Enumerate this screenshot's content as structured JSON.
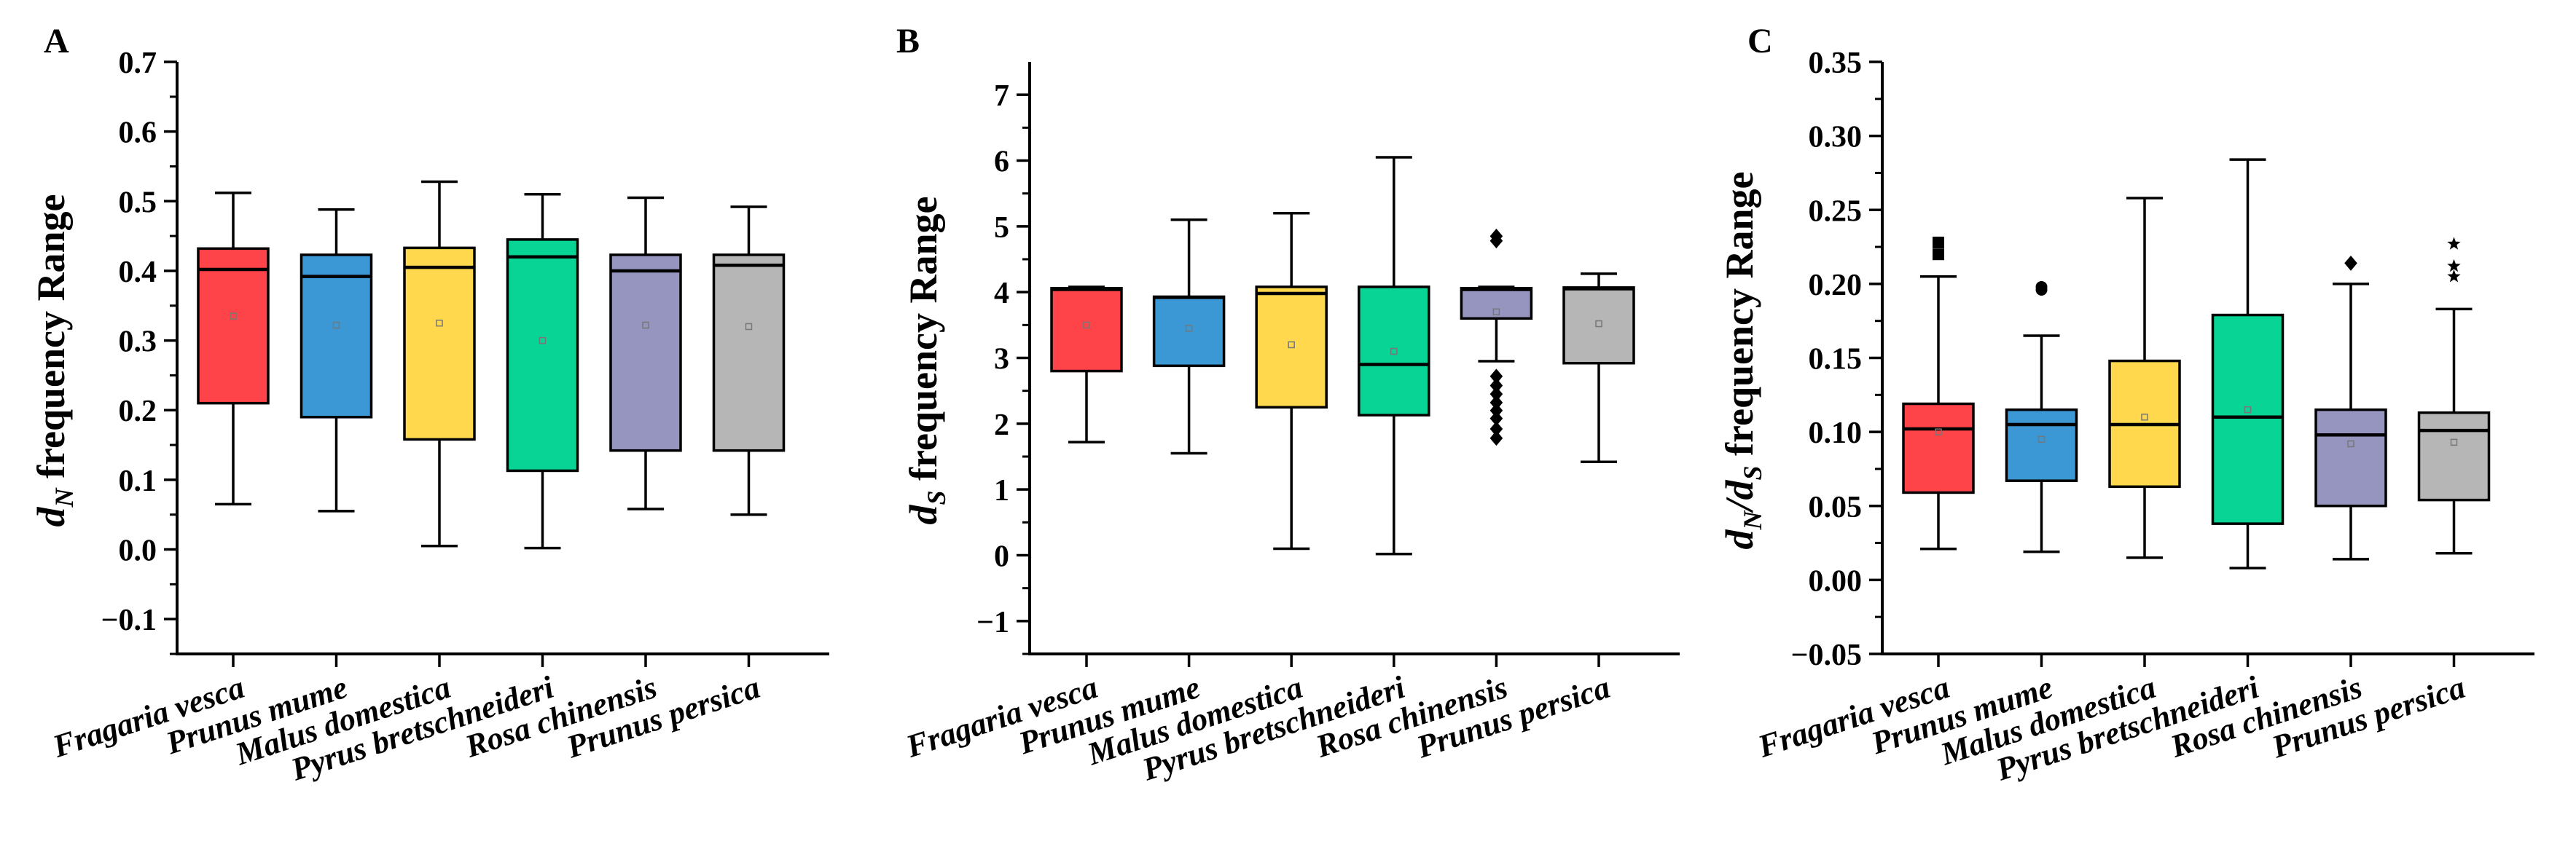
{
  "colors": {
    "Fragaria vesca": "#ff4449",
    "Prunus mume": "#3b98d4",
    "Malus domestica": "#ffd84d",
    "Pyrus bretschneideri": "#07d495",
    "Rosa chinensis": "#9595c0",
    "Prunus persica": "#b6b6b6",
    "stroke": "#000000"
  },
  "chart_data": [
    {
      "type": "box",
      "panel_label": "A",
      "ylabel_main": "d",
      "ylabel_sub": "N",
      "ylabel_rest": " frequency Range",
      "ylim": [
        -0.15,
        0.7
      ],
      "yticks": [
        -0.1,
        0.0,
        0.1,
        0.2,
        0.3,
        0.4,
        0.5,
        0.6,
        0.7
      ],
      "ytick_labels": [
        "−0.1",
        "0.0",
        "0.1",
        "0.2",
        "0.3",
        "0.4",
        "0.5",
        "0.6",
        "0.7"
      ],
      "categories": [
        "Fragaria vesca",
        "Prunus mume",
        "Malus domestica",
        "Pyrus bretschneideri",
        "Rosa chinensis",
        "Prunus persica"
      ],
      "boxes": [
        {
          "min": 0.065,
          "q1": 0.21,
          "median": 0.402,
          "q3": 0.432,
          "max": 0.512,
          "mean": 0.335,
          "outliers": [],
          "marker": "square"
        },
        {
          "min": 0.055,
          "q1": 0.19,
          "median": 0.392,
          "q3": 0.423,
          "max": 0.488,
          "mean": 0.322,
          "outliers": [],
          "marker": "circle"
        },
        {
          "min": 0.005,
          "q1": 0.158,
          "median": 0.405,
          "q3": 0.433,
          "max": 0.528,
          "mean": 0.325,
          "outliers": [],
          "marker": "triangle"
        },
        {
          "min": 0.002,
          "q1": 0.113,
          "median": 0.42,
          "q3": 0.445,
          "max": 0.51,
          "mean": 0.3,
          "outliers": [],
          "marker": "triangle-down"
        },
        {
          "min": 0.058,
          "q1": 0.142,
          "median": 0.4,
          "q3": 0.423,
          "max": 0.505,
          "mean": 0.322,
          "outliers": [],
          "marker": "diamond"
        },
        {
          "min": 0.05,
          "q1": 0.142,
          "median": 0.408,
          "q3": 0.423,
          "max": 0.492,
          "mean": 0.32,
          "outliers": [],
          "marker": "star"
        }
      ]
    },
    {
      "type": "box",
      "panel_label": "B",
      "ylabel_main": "d",
      "ylabel_sub": "S",
      "ylabel_rest": " frequency Range",
      "ylim": [
        -1.5,
        7.5
      ],
      "yticks": [
        -1,
        0,
        1,
        2,
        3,
        4,
        5,
        6,
        7
      ],
      "ytick_labels": [
        "−1",
        "0",
        "1",
        "2",
        "3",
        "4",
        "5",
        "6",
        "7"
      ],
      "categories": [
        "Fragaria vesca",
        "Prunus mume",
        "Malus domestica",
        "Pyrus bretschneideri",
        "Rosa chinensis",
        "Prunus persica"
      ],
      "boxes": [
        {
          "min": 1.72,
          "q1": 2.8,
          "median": 4.04,
          "q3": 4.06,
          "max": 4.08,
          "mean": 3.5,
          "outliers": [],
          "marker": "square"
        },
        {
          "min": 1.55,
          "q1": 2.88,
          "median": 3.92,
          "q3": 3.93,
          "max": 5.1,
          "mean": 3.45,
          "outliers": [],
          "marker": "circle"
        },
        {
          "min": 0.1,
          "q1": 2.25,
          "median": 3.98,
          "q3": 4.08,
          "max": 5.2,
          "mean": 3.2,
          "outliers": [],
          "marker": "triangle"
        },
        {
          "min": 0.02,
          "q1": 2.13,
          "median": 2.9,
          "q3": 4.08,
          "max": 6.05,
          "mean": 3.1,
          "outliers": [],
          "marker": "triangle-down"
        },
        {
          "min": 2.95,
          "q1": 3.6,
          "median": 4.04,
          "q3": 4.06,
          "max": 4.08,
          "mean": 3.7,
          "outliers": [
            4.85,
            4.78,
            2.72,
            2.58,
            2.45,
            2.32,
            2.2,
            2.08,
            1.92,
            1.78
          ],
          "marker": "diamond"
        },
        {
          "min": 1.42,
          "q1": 2.92,
          "median": 4.05,
          "q3": 4.07,
          "max": 4.28,
          "mean": 3.52,
          "outliers": [],
          "marker": "star"
        }
      ]
    },
    {
      "type": "box",
      "panel_label": "C",
      "ylabel_main": "d",
      "ylabel_sub": "N",
      "ylabel_mid": "/d",
      "ylabel_sub2": "S",
      "ylabel_rest": " frequency Range",
      "ylim": [
        -0.05,
        0.35
      ],
      "yticks": [
        -0.05,
        0.0,
        0.05,
        0.1,
        0.15,
        0.2,
        0.25,
        0.3,
        0.35
      ],
      "ytick_labels": [
        "−0.05",
        "0.00",
        "0.05",
        "0.10",
        "0.15",
        "0.20",
        "0.25",
        "0.30",
        "0.35"
      ],
      "categories": [
        "Fragaria vesca",
        "Prunus mume",
        "Malus domestica",
        "Pyrus bretschneideri",
        "Rosa chinensis",
        "Prunus persica"
      ],
      "boxes": [
        {
          "min": 0.021,
          "q1": 0.059,
          "median": 0.102,
          "q3": 0.119,
          "max": 0.205,
          "mean": 0.1,
          "outliers": [
            0.228,
            0.22
          ],
          "marker": "square"
        },
        {
          "min": 0.019,
          "q1": 0.067,
          "median": 0.105,
          "q3": 0.115,
          "max": 0.165,
          "mean": 0.095,
          "outliers": [
            0.198,
            0.196
          ],
          "marker": "circle"
        },
        {
          "min": 0.015,
          "q1": 0.063,
          "median": 0.105,
          "q3": 0.148,
          "max": 0.258,
          "mean": 0.11,
          "outliers": [],
          "marker": "triangle"
        },
        {
          "min": 0.008,
          "q1": 0.038,
          "median": 0.11,
          "q3": 0.179,
          "max": 0.284,
          "mean": 0.115,
          "outliers": [],
          "marker": "triangle-down"
        },
        {
          "min": 0.014,
          "q1": 0.05,
          "median": 0.098,
          "q3": 0.115,
          "max": 0.2,
          "mean": 0.092,
          "outliers": [
            0.214
          ],
          "marker": "diamond"
        },
        {
          "min": 0.018,
          "q1": 0.054,
          "median": 0.101,
          "q3": 0.113,
          "max": 0.183,
          "mean": 0.093,
          "outliers": [
            0.227,
            0.212,
            0.205
          ],
          "marker": "star"
        }
      ]
    }
  ]
}
